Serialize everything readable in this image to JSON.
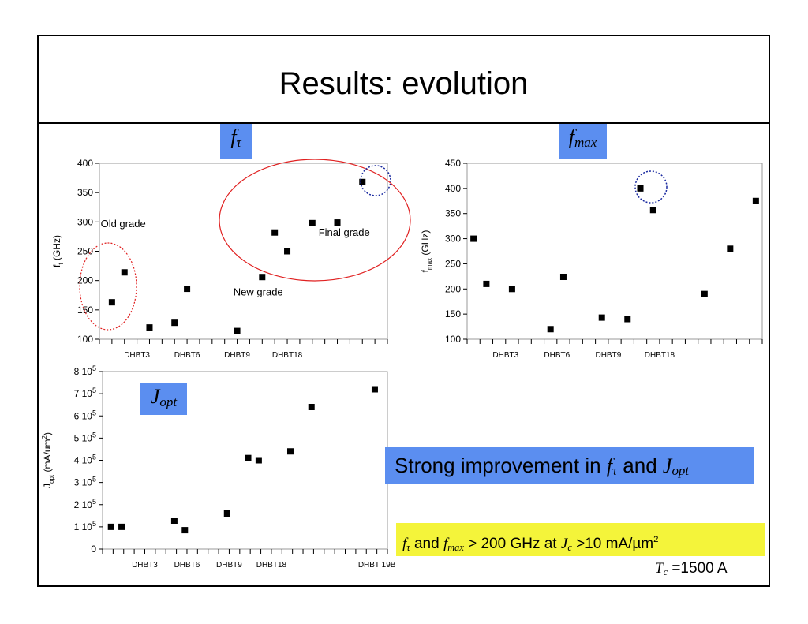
{
  "slide": {
    "title": "Results: evolution",
    "labels": {
      "ft_base": "f",
      "ft_sub": "τ",
      "fmax_base": "f",
      "fmax_sub": "max",
      "jopt_base": "J",
      "jopt_sub": "opt"
    },
    "callout_blue": {
      "text": "Strong improvement in ",
      "f": "f",
      "tau": "τ",
      "and": " and ",
      "J": "J",
      "opt": "opt"
    },
    "callout_yellow": {
      "f1": "f",
      "tau": "τ",
      "and": "  and ",
      "f2": "f",
      "max": "max",
      "mid": " > 200 GHz at ",
      "J": "J",
      "c": "c",
      "tail": " >10 mA/µm",
      "sup": "2"
    },
    "tc": {
      "T": "T",
      "c": "c",
      "value": " =1500 A"
    },
    "colors": {
      "callout_blue": "#5b8ef0",
      "callout_yellow": "#f4f43a",
      "red_ellipse": "#e02020",
      "blue_dotted": "#1a2aa0"
    }
  },
  "chart_data": [
    {
      "type": "scatter",
      "id": "ft",
      "ylabel": "f",
      "ylabel_sub": "t",
      "ylabel_unit": "(GHz)",
      "ylim": [
        100,
        400
      ],
      "yticks": [
        100,
        150,
        200,
        250,
        300,
        350,
        400
      ],
      "xlim": [
        0,
        23
      ],
      "x_minor_ticks": 23,
      "categories": [
        {
          "x": 3,
          "label": "DHBT3"
        },
        {
          "x": 7,
          "label": "DHBT6"
        },
        {
          "x": 11,
          "label": "DHBT9"
        },
        {
          "x": 15,
          "label": "DHBT18"
        }
      ],
      "points": [
        [
          1,
          163
        ],
        [
          2,
          214
        ],
        [
          4,
          120
        ],
        [
          6,
          128
        ],
        [
          7,
          186
        ],
        [
          11,
          114
        ],
        [
          13,
          206
        ],
        [
          14,
          282
        ],
        [
          15,
          250
        ],
        [
          17,
          298
        ],
        [
          19,
          299
        ],
        [
          21,
          368
        ]
      ],
      "annotations": [
        {
          "text": "Old grade",
          "x": 0.1,
          "y": 291
        },
        {
          "text": "Final grade",
          "x": 17.5,
          "y": 276
        },
        {
          "text": "New grade",
          "x": 10.7,
          "y": 175
        }
      ]
    },
    {
      "type": "scatter",
      "id": "fmax",
      "ylabel": "f",
      "ylabel_sub": "max",
      "ylabel_unit": "(GHz)",
      "ylim": [
        100,
        450
      ],
      "yticks": [
        100,
        150,
        200,
        250,
        300,
        350,
        400,
        450
      ],
      "xlim": [
        0,
        23
      ],
      "x_minor_ticks": 23,
      "categories": [
        {
          "x": 3,
          "label": "DHBT3"
        },
        {
          "x": 7,
          "label": "DHBT6"
        },
        {
          "x": 11,
          "label": "DHBT9"
        },
        {
          "x": 15,
          "label": "DHBT18"
        }
      ],
      "points": [
        [
          0.5,
          300
        ],
        [
          1.5,
          210
        ],
        [
          3.5,
          200
        ],
        [
          6.5,
          120
        ],
        [
          7.5,
          224
        ],
        [
          10.5,
          143
        ],
        [
          12.5,
          140
        ],
        [
          13.5,
          400
        ],
        [
          14.5,
          357
        ],
        [
          18.5,
          190
        ],
        [
          20.5,
          280
        ],
        [
          22.5,
          375
        ]
      ]
    },
    {
      "type": "scatter",
      "id": "jopt",
      "ylabel": "J",
      "ylabel_sub": "opt",
      "ylabel_unit": "(mA/um",
      "ylabel_sup": "2",
      "ylabel_close": ")",
      "ylim": [
        0,
        800000
      ],
      "yticks": [
        {
          "v": 0,
          "m": "0",
          "e": ""
        },
        {
          "v": 100000,
          "m": "1 10",
          "e": "5"
        },
        {
          "v": 200000,
          "m": "2 10",
          "e": "5"
        },
        {
          "v": 300000,
          "m": "3 10",
          "e": "5"
        },
        {
          "v": 400000,
          "m": "4 10",
          "e": "5"
        },
        {
          "v": 500000,
          "m": "5 10",
          "e": "5"
        },
        {
          "v": 600000,
          "m": "6 10",
          "e": "5"
        },
        {
          "v": 700000,
          "m": "7 10",
          "e": "5"
        },
        {
          "v": 800000,
          "m": "8 10",
          "e": "5"
        }
      ],
      "xlim": [
        0,
        27
      ],
      "x_minor_ticks": 27,
      "categories": [
        {
          "x": 4,
          "label": "DHBT3"
        },
        {
          "x": 8,
          "label": "DHBT6"
        },
        {
          "x": 12,
          "label": "DHBT9"
        },
        {
          "x": 16,
          "label": "DHBT18"
        },
        {
          "x": 26,
          "label": "DHBT 19B"
        }
      ],
      "points": [
        [
          0.8,
          100000
        ],
        [
          1.8,
          100000
        ],
        [
          6.8,
          128000
        ],
        [
          7.8,
          85000
        ],
        [
          11.8,
          160000
        ],
        [
          13.8,
          410000
        ],
        [
          14.8,
          400000
        ],
        [
          17.8,
          440000
        ],
        [
          19.8,
          640000
        ],
        [
          25.8,
          720000
        ]
      ]
    }
  ]
}
